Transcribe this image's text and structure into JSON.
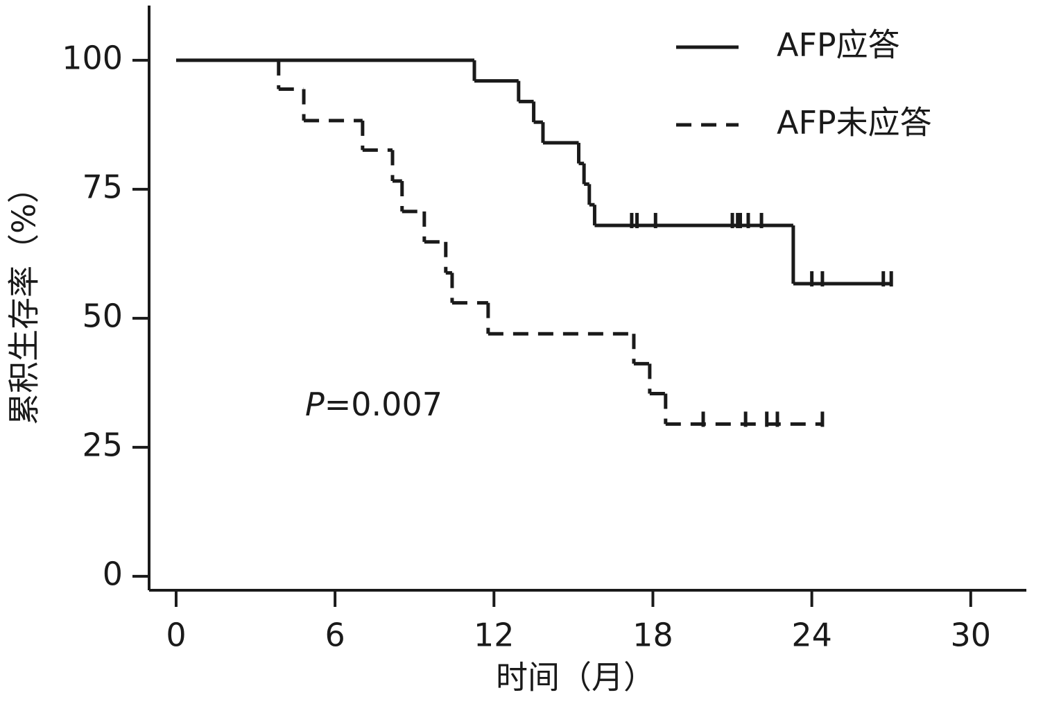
{
  "chart_data": {
    "type": "kaplan-meier",
    "xlabel": "时间（月）",
    "ylabel": "累积生存率（%）",
    "annotation": [
      "P",
      "=0.007"
    ],
    "xlim": [
      -1.02,
      32.1
    ],
    "ylim": [
      -2.7,
      110.6
    ],
    "xticks": [
      0,
      6,
      12,
      18,
      24,
      30
    ],
    "yticks": [
      0,
      25,
      50,
      75,
      100
    ],
    "legend": "upper right",
    "series": [
      {
        "name": "AFP应答",
        "color": "#1a1a1a",
        "style": "solid",
        "x": [
          0,
          11.26,
          12.93,
          13.5,
          13.85,
          15.2,
          15.4,
          15.6,
          15.8,
          23.3,
          27.0
        ],
        "values": [
          100,
          96,
          92,
          88,
          84,
          80,
          76,
          72,
          68,
          56.7,
          56.7
        ],
        "censored": {
          "x": [
            17.2,
            17.4,
            18.1,
            21.0,
            21.2,
            21.3,
            21.6,
            22.1,
            24.0,
            24.4,
            26.7,
            27.0
          ],
          "values": [
            68,
            68,
            68,
            68,
            68,
            68,
            68,
            68,
            56.7,
            56.7,
            56.7,
            56.7
          ]
        }
      },
      {
        "name": "AFP未应答",
        "color": "#1a1a1a",
        "style": "dashed",
        "x": [
          3.87,
          3.87,
          4.82,
          7.04,
          8.17,
          8.53,
          9.37,
          10.18,
          10.42,
          11.78,
          17.28,
          17.88,
          18.48,
          24.4
        ],
        "values": [
          100,
          94.4,
          88.3,
          82.6,
          76.6,
          70.7,
          64.8,
          58.8,
          53.0,
          47,
          41.2,
          35.4,
          29.5,
          29.5
        ],
        "censored": {
          "x": [
            19.9,
            21.5,
            22.3,
            22.7,
            24.4
          ],
          "values": [
            29.5,
            29.5,
            29.5,
            29.5,
            29.5
          ]
        }
      }
    ]
  }
}
